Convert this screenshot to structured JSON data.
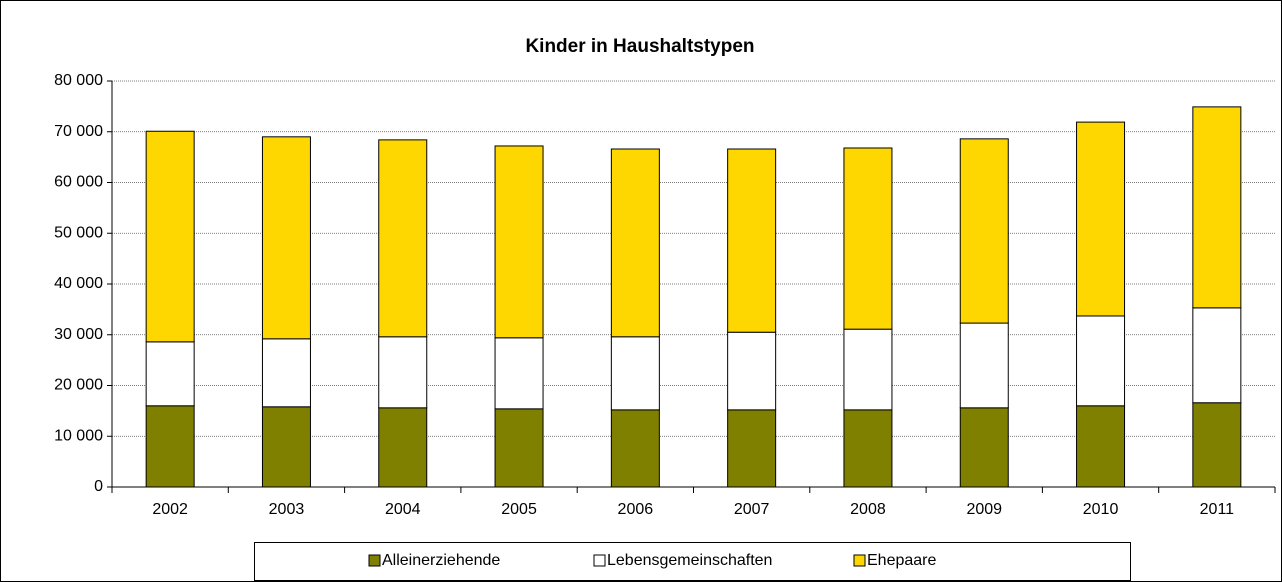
{
  "chart_data": {
    "type": "stacked_bar",
    "title": "Kinder in Haushaltstypen",
    "categories": [
      "2002",
      "2003",
      "2004",
      "2005",
      "2006",
      "2007",
      "2008",
      "2009",
      "2010",
      "2011"
    ],
    "series": [
      {
        "name": "Alleinerziehende",
        "color": "#808000",
        "values": [
          16000,
          15800,
          15600,
          15400,
          15200,
          15200,
          15200,
          15600,
          16000,
          16600
        ]
      },
      {
        "name": "Lebensgemeinschaften",
        "color": "#ffffff",
        "values": [
          12600,
          13400,
          14000,
          14000,
          14400,
          15300,
          15900,
          16700,
          17700,
          18700
        ]
      },
      {
        "name": "Ehepaare",
        "color": "#ffd700",
        "values": [
          41500,
          39800,
          38800,
          37800,
          37000,
          36100,
          35700,
          36300,
          38200,
          39600
        ]
      }
    ],
    "ylim": [
      0,
      80000
    ],
    "yticks": [
      0,
      {
        "value": 10000,
        "label": "10 000"
      },
      {
        "value": 20000,
        "label": "20 000"
      },
      {
        "value": 30000,
        "label": "30 000"
      },
      {
        "value": 40000,
        "label": "40 000"
      },
      {
        "value": 50000,
        "label": "50 000"
      },
      {
        "value": 60000,
        "label": "60 000"
      },
      {
        "value": 70000,
        "label": "70 000"
      },
      {
        "value": 80000,
        "label": "80 000"
      }
    ],
    "grid": true,
    "legend": "bottom"
  }
}
